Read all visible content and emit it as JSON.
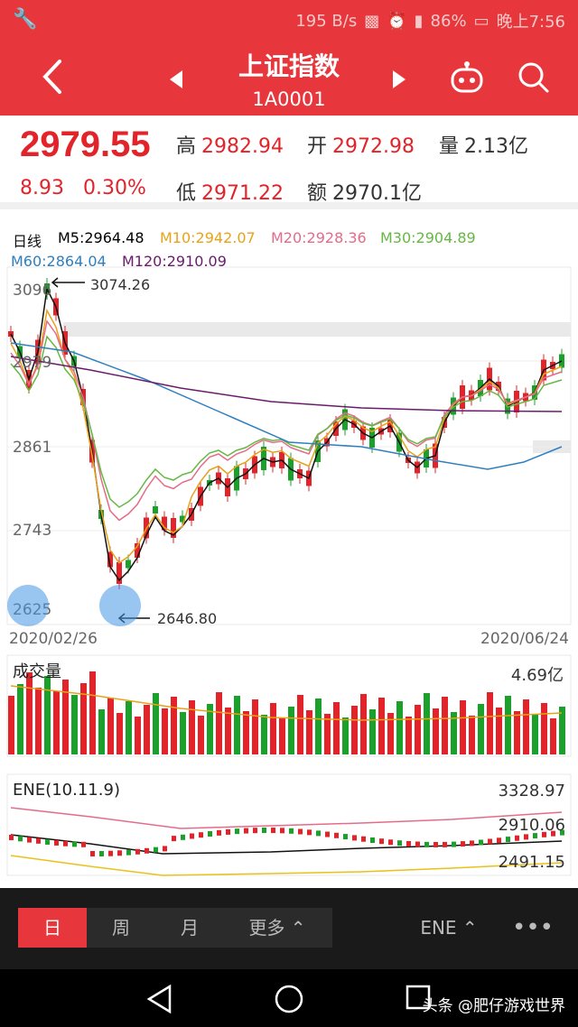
{
  "status": {
    "speed": "195 B/s",
    "battery": "86%",
    "time": "晚上7:56"
  },
  "header": {
    "title": "上证指数",
    "code": "1A0001"
  },
  "quote": {
    "price": "2979.55",
    "change": "8.93",
    "change_pct": "0.30%",
    "high_label": "高",
    "high": "2982.94",
    "open_label": "开",
    "open": "2972.98",
    "vol_label": "量",
    "vol": "2.13亿",
    "low_label": "低",
    "low": "2971.22",
    "amt_label": "额",
    "amt": "2970.1亿"
  },
  "chart": {
    "period": "日线",
    "ma": [
      {
        "label": "M5:2964.48",
        "color": "#111111"
      },
      {
        "label": "M10:2942.07",
        "color": "#e8a21a"
      },
      {
        "label": "M20:2928.36",
        "color": "#e56b8a"
      },
      {
        "label": "M30:2904.89",
        "color": "#66b844"
      },
      {
        "label": "M60:2864.04",
        "color": "#2f7fbf"
      },
      {
        "label": "M120:2910.09",
        "color": "#6a1b6a"
      }
    ],
    "y_labels": [
      "3096",
      "2979",
      "2861",
      "2743",
      "2625"
    ],
    "high_marker": "3074.26",
    "low_marker": "2646.80",
    "start_date": "2020/02/26",
    "end_date": "2020/06/24"
  },
  "volume": {
    "title": "成交量",
    "max": "4.69亿"
  },
  "ene": {
    "title": "ENE(10.11.9)",
    "upper": "3328.97",
    "mid": "2910.06",
    "lower": "2491.15"
  },
  "tabs": {
    "day": "日",
    "week": "周",
    "month": "月",
    "more": "更多",
    "indicator": "ENE"
  },
  "watermark": "头条 @肥仔游戏世界",
  "colors": {
    "up": "#e2232a",
    "down": "#1aa02b",
    "accent": "#e8373c"
  }
}
